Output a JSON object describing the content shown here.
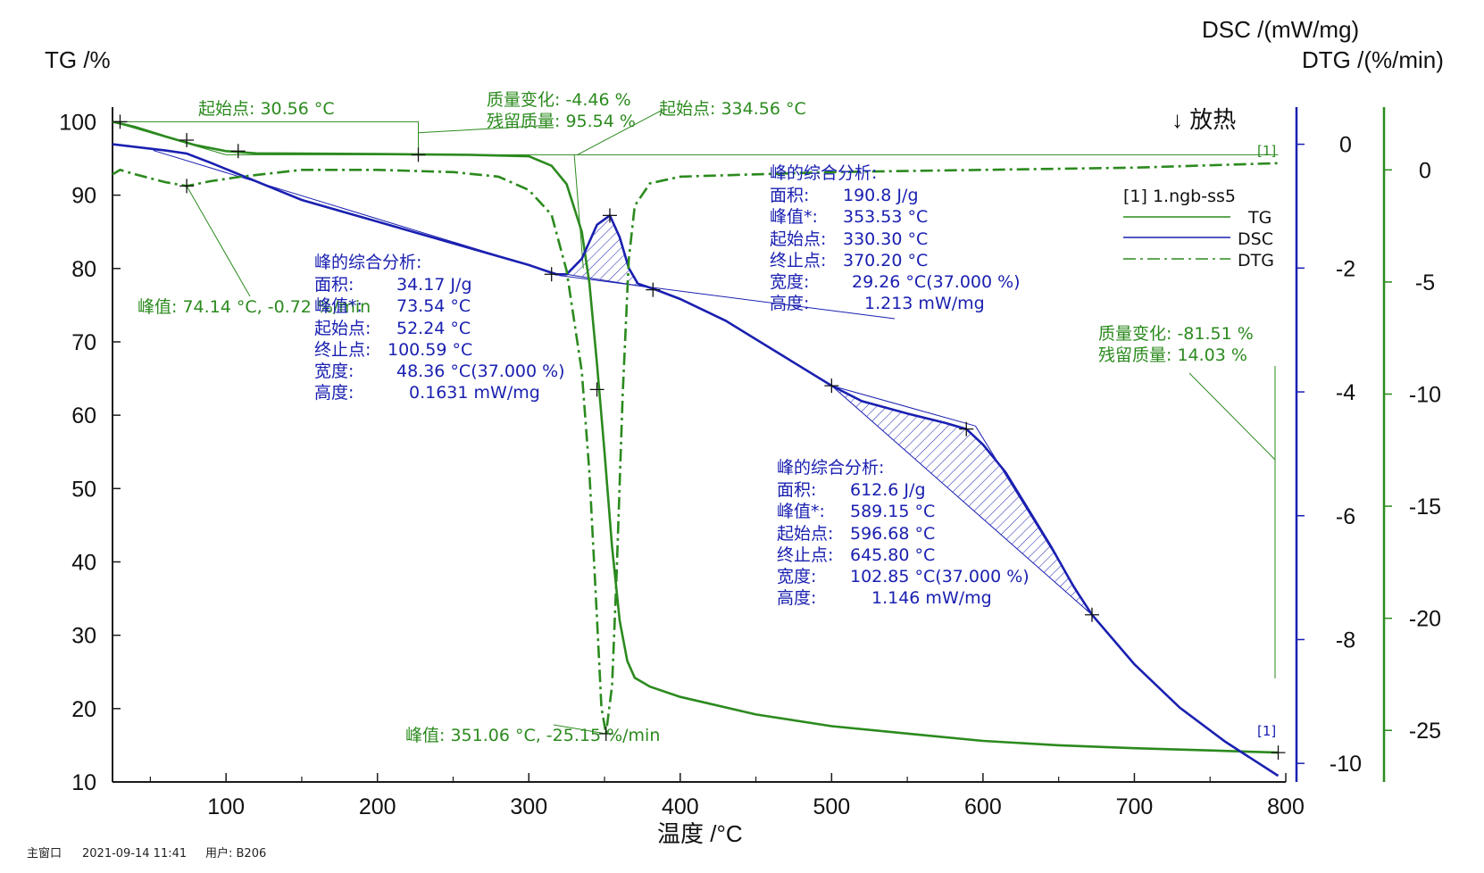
{
  "chart_data": {
    "type": "line",
    "title": "",
    "xlabel": "温度 /°C",
    "ylabels": {
      "tg": "TG /%",
      "dsc": "DSC /(mW/mg)",
      "dtg": "DTG /(%/min)"
    },
    "exo_label": "↓ 放热",
    "xlim": [
      25,
      800
    ],
    "ylim_tg": [
      10,
      102
    ],
    "ylim_dsc": [
      -10.3,
      0.6
    ],
    "ylim_dtg": [
      -27.3,
      2.8
    ],
    "x_ticks": [
      "100",
      "200",
      "300",
      "400",
      "500",
      "600",
      "700",
      "800"
    ],
    "tg_ticks": [
      "10",
      "20",
      "30",
      "40",
      "50",
      "60",
      "70",
      "80",
      "90",
      "100"
    ],
    "dsc_ticks": [
      "-10",
      "-8",
      "-6",
      "-4",
      "-2",
      "0"
    ],
    "dtg_ticks": [
      "-25",
      "-20",
      "-15",
      "-10",
      "-5",
      "0"
    ],
    "legend": {
      "file": "[1]  1.ngb-ss5",
      "items": [
        "TG",
        "DSC",
        "DTG"
      ]
    },
    "marker_label": "[1]",
    "colors": {
      "tg": "#2b8a1e",
      "dsc": "#1a20b0",
      "dtg": "#2b8a1e",
      "axis_tg": "#111111",
      "axis_dsc": "#1a20b0",
      "axis_dtg": "#2b8a1e"
    },
    "series": [
      {
        "name": "TG",
        "axis": "tg",
        "points": [
          [
            25,
            100
          ],
          [
            40,
            99.3
          ],
          [
            60,
            98.0
          ],
          [
            80,
            96.8
          ],
          [
            100,
            96.0
          ],
          [
            120,
            95.7
          ],
          [
            200,
            95.6
          ],
          [
            260,
            95.5
          ],
          [
            300,
            95.3
          ],
          [
            315,
            94.0
          ],
          [
            325,
            91.5
          ],
          [
            335,
            85
          ],
          [
            340,
            78
          ],
          [
            345,
            67
          ],
          [
            350,
            55
          ],
          [
            355,
            42
          ],
          [
            360,
            32
          ],
          [
            365,
            26.5
          ],
          [
            370,
            24.2
          ],
          [
            380,
            23
          ],
          [
            400,
            21.6
          ],
          [
            450,
            19.2
          ],
          [
            500,
            17.6
          ],
          [
            550,
            16.6
          ],
          [
            600,
            15.6
          ],
          [
            650,
            15
          ],
          [
            700,
            14.6
          ],
          [
            750,
            14.3
          ],
          [
            795,
            14.0
          ]
        ]
      },
      {
        "name": "DSC",
        "axis": "dsc",
        "points": [
          [
            25,
            0
          ],
          [
            60,
            -0.1
          ],
          [
            74,
            -0.15
          ],
          [
            90,
            -0.3
          ],
          [
            110,
            -0.5
          ],
          [
            150,
            -0.9
          ],
          [
            200,
            -1.25
          ],
          [
            250,
            -1.6
          ],
          [
            300,
            -1.95
          ],
          [
            318,
            -2.1
          ],
          [
            325,
            -2.1
          ],
          [
            335,
            -1.85
          ],
          [
            345,
            -1.3
          ],
          [
            353.5,
            -1.15
          ],
          [
            360,
            -1.5
          ],
          [
            366,
            -2
          ],
          [
            372,
            -2.25
          ],
          [
            384,
            -2.35
          ],
          [
            400,
            -2.5
          ],
          [
            430,
            -2.85
          ],
          [
            470,
            -3.45
          ],
          [
            500,
            -3.9
          ],
          [
            520,
            -4.15
          ],
          [
            550,
            -4.35
          ],
          [
            575,
            -4.5
          ],
          [
            589,
            -4.6
          ],
          [
            600,
            -4.85
          ],
          [
            615,
            -5.3
          ],
          [
            630,
            -5.9
          ],
          [
            645,
            -6.5
          ],
          [
            660,
            -7.15
          ],
          [
            672,
            -7.6
          ],
          [
            700,
            -8.4
          ],
          [
            730,
            -9.1
          ],
          [
            760,
            -9.65
          ],
          [
            795,
            -10.2
          ]
        ]
      },
      {
        "name": "DTG",
        "axis": "dtg",
        "points": [
          [
            25,
            -0.2
          ],
          [
            30,
            0
          ],
          [
            40,
            -0.2
          ],
          [
            60,
            -0.55
          ],
          [
            74,
            -0.72
          ],
          [
            90,
            -0.5
          ],
          [
            110,
            -0.3
          ],
          [
            150,
            0
          ],
          [
            200,
            0
          ],
          [
            250,
            -0.1
          ],
          [
            280,
            -0.3
          ],
          [
            300,
            -0.9
          ],
          [
            315,
            -2
          ],
          [
            325,
            -4.5
          ],
          [
            335,
            -9
          ],
          [
            340,
            -13.5
          ],
          [
            345,
            -20
          ],
          [
            348,
            -24
          ],
          [
            351,
            -25.15
          ],
          [
            355,
            -23
          ],
          [
            358,
            -18
          ],
          [
            362,
            -10
          ],
          [
            366,
            -4
          ],
          [
            370,
            -1.6
          ],
          [
            380,
            -0.6
          ],
          [
            400,
            -0.3
          ],
          [
            450,
            -0.2
          ],
          [
            500,
            -0.1
          ],
          [
            600,
            0
          ],
          [
            700,
            0.1
          ],
          [
            795,
            0.3
          ]
        ]
      }
    ],
    "annotations": {
      "tg_left": {
        "onset": "起始点: 30.56 °C"
      },
      "tg_step1": {
        "mass_change": "质量变化:   -4.46 %",
        "residual": "残留质量:   95.54 %"
      },
      "tg_onset2": "起始点: 334.56 °C",
      "tg_step2": {
        "mass_change": "质量变化:   -81.51 %",
        "residual": "残留质量:    14.03 %"
      },
      "dtg_peak1": "峰值: 74.14 °C, -0.72 %/min",
      "dtg_peak2": "峰值: 351.06 °C, -25.15 %/min",
      "dsc_peak1": {
        "title": "峰的综合分析:",
        "area": "34.17 J/g",
        "peak": "73.54 °C",
        "onset": "52.24 °C",
        "end": "100.59 °C",
        "width": "48.36 °C(37.000 %)",
        "height": "0.1631 mW/mg"
      },
      "dsc_peak2": {
        "title": "峰的综合分析:",
        "area": "190.8 J/g",
        "peak": "353.53 °C",
        "onset": "330.30 °C",
        "end": "370.20 °C",
        "width": "29.26 °C(37.000 %)",
        "height": "1.213 mW/mg"
      },
      "dsc_peak3": {
        "title": "峰的综合分析:",
        "area": "612.6 J/g",
        "peak": "589.15 °C",
        "onset": "596.68 °C",
        "end": "645.80 °C",
        "width": "102.85 °C(37.000 %)",
        "height": "1.146 mW/mg"
      },
      "field_labels": {
        "area": "面积:",
        "peak": "峰值*:",
        "onset": "起始点:",
        "end": "终止点:",
        "width": "宽度:",
        "height": "高度:"
      }
    },
    "grid": false
  },
  "footer": {
    "window": "主窗口",
    "datetime": "2021-09-14 11:41",
    "user": "用户: B206"
  }
}
